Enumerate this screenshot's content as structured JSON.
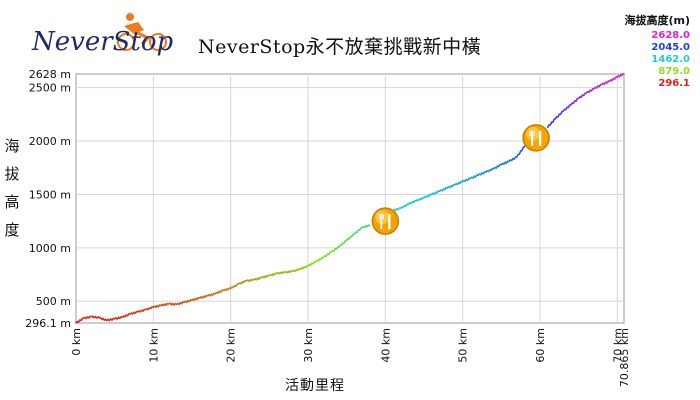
{
  "logo_text": "NeverStop",
  "chart_data": {
    "type": "line",
    "title": "NeverStop永不放棄挑戰新中橫",
    "xlabel": "活動里程",
    "ylabel": "海拔高度",
    "x_ticks": [
      "0 km",
      "10 km",
      "20 km",
      "30 km",
      "40 km",
      "50 km",
      "60 km",
      "70 km",
      "70.865 km"
    ],
    "y_ticks": [
      "296.1 m",
      "500 m",
      "1000 m",
      "1500 m",
      "2000 m",
      "2500 m",
      "2628 m"
    ],
    "xlim": [
      0,
      70.865
    ],
    "ylim": [
      296.1,
      2628
    ],
    "grid": true,
    "legend": {
      "title": "海拔高度(m)",
      "items": [
        {
          "label": "2628.0",
          "color": "#e020e0"
        },
        {
          "label": "2045.0",
          "color": "#2040e0"
        },
        {
          "label": "1462.0",
          "color": "#20d0d0"
        },
        {
          "label": "879.0",
          "color": "#90e020"
        },
        {
          "label": "296.1",
          "color": "#e02020"
        }
      ]
    },
    "series": [
      {
        "x": [
          0,
          1,
          2,
          3,
          4,
          5,
          6,
          7,
          8,
          9,
          10,
          11,
          12,
          13,
          14,
          15,
          16,
          17,
          18,
          19,
          20,
          21,
          22,
          23,
          24,
          25,
          26,
          27,
          28,
          29,
          30,
          31,
          32,
          33,
          34,
          35,
          36,
          37,
          38,
          40,
          41,
          42,
          43,
          44,
          45,
          46,
          47,
          48,
          49,
          50,
          51,
          52,
          53,
          54,
          55,
          56,
          57,
          58,
          61,
          62,
          63,
          64,
          65,
          66,
          67,
          68,
          69,
          70,
          70.865
        ],
        "y": [
          296.1,
          340,
          355,
          345,
          320,
          335,
          350,
          380,
          400,
          420,
          445,
          460,
          475,
          470,
          490,
          510,
          530,
          550,
          570,
          600,
          620,
          660,
          690,
          700,
          720,
          740,
          760,
          770,
          780,
          800,
          830,
          870,
          910,
          960,
          1010,
          1070,
          1130,
          1190,
          1210,
          1300,
          1350,
          1370,
          1410,
          1440,
          1470,
          1500,
          1530,
          1560,
          1590,
          1620,
          1650,
          1680,
          1710,
          1740,
          1780,
          1810,
          1850,
          1950,
          2130,
          2210,
          2280,
          2340,
          2400,
          2450,
          2490,
          2530,
          2560,
          2600,
          2628
        ]
      }
    ],
    "break_after_x": [
      38,
      58
    ],
    "annotations": [
      {
        "type": "restaurant",
        "x": 40,
        "y": 1250
      },
      {
        "type": "restaurant",
        "x": 59.5,
        "y": 2030
      }
    ]
  }
}
